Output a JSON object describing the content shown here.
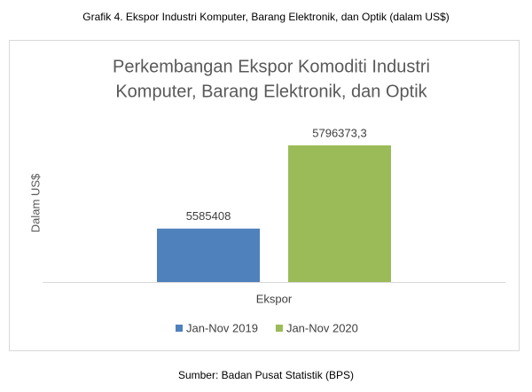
{
  "caption": "Grafik 4. Ekspor Industri Komputer, Barang Elektronik, dan Optik (dalam US$)",
  "chart_data": {
    "type": "bar",
    "title": [
      "Perkembangan Ekspor Komoditi Industri",
      "Komputer, Barang Elektronik, dan Optik"
    ],
    "ylabel": "Dalam US$",
    "categories": [
      "Ekspor"
    ],
    "series": [
      {
        "name": "Jan-Nov 2019",
        "color": "#4f81bd",
        "values": [
          5585408
        ]
      },
      {
        "name": "Jan-Nov 2020",
        "color": "#9bbb59",
        "values": [
          5796373.3
        ],
        "value_labels": [
          "5796373,3"
        ]
      }
    ],
    "ylim": [
      5450000,
      5850000
    ],
    "legend": "bottom"
  },
  "source": "Sumber: Badan Pusat Statistik (BPS)"
}
